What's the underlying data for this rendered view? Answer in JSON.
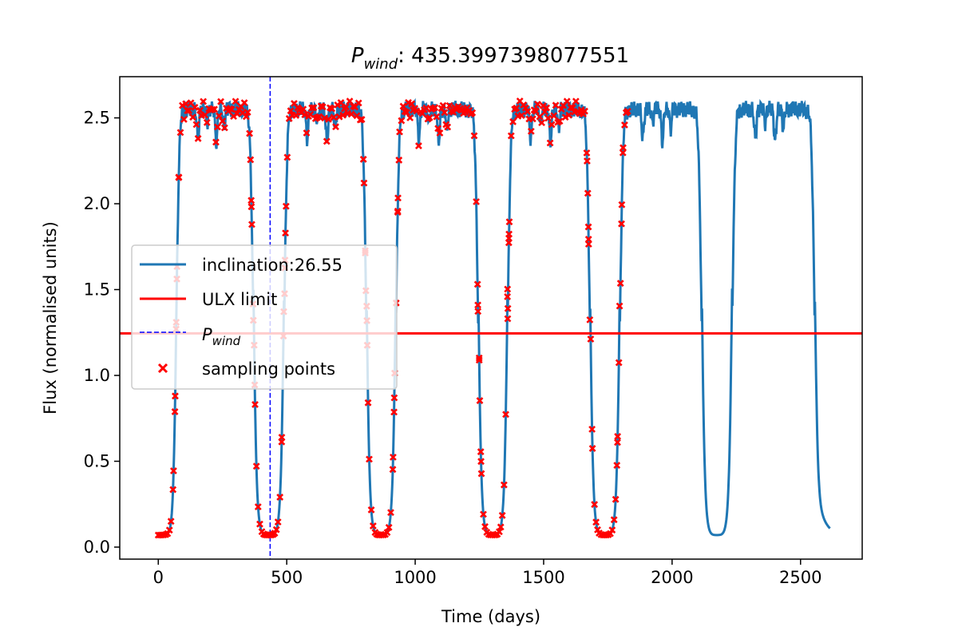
{
  "chart_data": {
    "type": "line",
    "title": {
      "symbol": "P",
      "subscript": "wind",
      "value": ": 435.3997398077551"
    },
    "xlabel": "Time (days)",
    "ylabel": "Flux (normalised units)",
    "xlim": [
      -150,
      2740
    ],
    "ylim": [
      -0.07,
      2.74
    ],
    "xticks": [
      0,
      500,
      1000,
      1500,
      2000,
      2500
    ],
    "yticks": [
      0.0,
      0.5,
      1.0,
      1.5,
      2.0,
      2.5
    ],
    "xtick_labels": [
      "0",
      "500",
      "1000",
      "1500",
      "2000",
      "2500"
    ],
    "ytick_labels": [
      "0.0",
      "0.5",
      "1.0",
      "1.5",
      "2.0",
      "2.5"
    ],
    "grid": false,
    "legend_placement": "center-left",
    "colors": {
      "curve": "#1f77b4",
      "ulx_limit": "#ff0000",
      "p_wind": "#0000ff",
      "sampling": "#ff0000"
    },
    "series": [
      {
        "name": "inclination:26.55",
        "kind": "line",
        "x_range": [
          0,
          2615
        ],
        "period": 436,
        "low": 0.07,
        "high": 2.55,
        "low_state_center": 0,
        "transitions_at": [
          70,
          370,
          490,
          810,
          925,
          1245,
          1360,
          1680,
          1797,
          2115,
          2234,
          2555
        ]
      },
      {
        "name": "ULX limit",
        "kind": "hline",
        "y": 1.245
      },
      {
        "name": "P",
        "name_subscript": "wind",
        "kind": "vline",
        "x": 435.3997398077551
      },
      {
        "name": "sampling points",
        "kind": "scatter",
        "x_range": [
          0,
          1830
        ],
        "approx_count": 260
      }
    ]
  },
  "legend": {
    "items": [
      {
        "label": "inclination:26.55",
        "sub": ""
      },
      {
        "label": "ULX limit",
        "sub": ""
      },
      {
        "label": "P",
        "sub": "wind"
      },
      {
        "label": "sampling points",
        "sub": ""
      }
    ]
  }
}
